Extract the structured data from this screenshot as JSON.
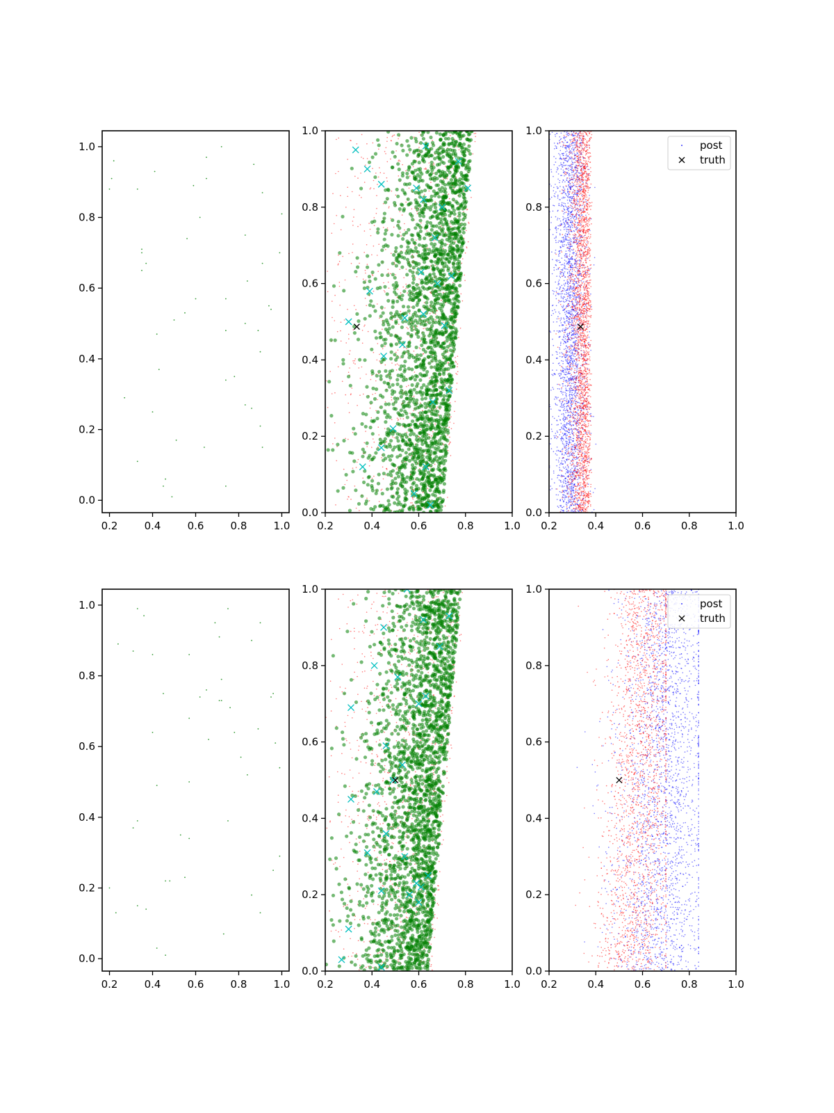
{
  "figure": {
    "title": "",
    "layout": "2x3 grid of scatter plots"
  },
  "colors": {
    "green": "#008000",
    "cyan": "#00bfbf",
    "red": "#ff0000",
    "blue": "#0000ff",
    "black": "#000000"
  },
  "chart_data": [
    {
      "type": "scatter",
      "panel": "top-left",
      "xlim": [
        0.166,
        1.034
      ],
      "ylim": [
        -0.035,
        1.045
      ],
      "xticks": [
        "0.2",
        "0.4",
        "0.6",
        "0.8",
        "1.0"
      ],
      "yticks": [
        "0.0",
        "0.2",
        "0.4",
        "0.6",
        "0.8",
        "1.0"
      ],
      "series": [
        {
          "style": "green small dots",
          "points": [
            [
              0.22,
              0.96
            ],
            [
              0.21,
              0.91
            ],
            [
              0.2,
              0.88
            ],
            [
              0.33,
              0.88
            ],
            [
              0.41,
              0.93
            ],
            [
              0.59,
              0.89
            ],
            [
              0.65,
              0.97
            ],
            [
              0.65,
              0.91
            ],
            [
              0.72,
              1.0
            ],
            [
              0.87,
              0.95
            ],
            [
              0.91,
              0.87
            ],
            [
              1.0,
              0.81
            ],
            [
              0.62,
              0.8
            ],
            [
              0.83,
              0.75
            ],
            [
              0.56,
              0.74
            ],
            [
              0.35,
              0.71
            ],
            [
              0.35,
              0.7
            ],
            [
              0.37,
              0.67
            ],
            [
              0.35,
              0.65
            ],
            [
              0.91,
              0.67
            ],
            [
              0.99,
              0.7
            ],
            [
              0.84,
              0.62
            ],
            [
              0.6,
              0.57
            ],
            [
              0.74,
              0.57
            ],
            [
              0.55,
              0.53
            ],
            [
              0.5,
              0.51
            ],
            [
              0.94,
              0.55
            ],
            [
              0.95,
              0.54
            ],
            [
              0.83,
              0.5
            ],
            [
              0.74,
              0.48
            ],
            [
              0.89,
              0.48
            ],
            [
              0.42,
              0.47
            ],
            [
              0.9,
              0.42
            ],
            [
              0.43,
              0.37
            ],
            [
              0.78,
              0.35
            ],
            [
              0.74,
              0.34
            ],
            [
              0.27,
              0.29
            ],
            [
              0.83,
              0.27
            ],
            [
              0.86,
              0.26
            ],
            [
              0.4,
              0.25
            ],
            [
              0.9,
              0.21
            ],
            [
              0.51,
              0.17
            ],
            [
              0.64,
              0.15
            ],
            [
              0.91,
              0.15
            ],
            [
              0.33,
              0.11
            ],
            [
              0.46,
              0.06
            ],
            [
              0.45,
              0.04
            ],
            [
              0.74,
              0.04
            ],
            [
              0.49,
              0.01
            ]
          ]
        }
      ]
    },
    {
      "type": "scatter",
      "panel": "top-middle",
      "xlim": [
        0.2,
        1.0
      ],
      "ylim": [
        0.0,
        1.0
      ],
      "xticks": [
        "0.2",
        "0.4",
        "0.6",
        "0.8",
        "1.0"
      ],
      "yticks": [
        "0.0",
        "0.2",
        "0.4",
        "0.6",
        "0.8",
        "1.0"
      ],
      "series": [
        {
          "style": "red tiny dots",
          "distribution": "x from 0.2 to right edge rising 0.70→0.84 with y; density heavier toward 0.5-0.8",
          "count": 900
        },
        {
          "style": "green circles",
          "distribution": "band x 0.2–0.83, densest 0.55–0.75",
          "count": 2400
        },
        {
          "style": "cyan x markers",
          "points": [
            [
              0.33,
              0.95
            ],
            [
              0.38,
              0.9
            ],
            [
              0.44,
              0.86
            ],
            [
              0.59,
              0.85
            ],
            [
              0.62,
              0.82
            ],
            [
              0.7,
              0.8
            ],
            [
              0.81,
              0.85
            ],
            [
              0.77,
              0.92
            ],
            [
              0.63,
              0.96
            ],
            [
              0.67,
              0.72
            ],
            [
              0.61,
              0.63
            ],
            [
              0.68,
              0.6
            ],
            [
              0.74,
              0.62
            ],
            [
              0.39,
              0.58
            ],
            [
              0.3,
              0.5
            ],
            [
              0.54,
              0.51
            ],
            [
              0.62,
              0.52
            ],
            [
              0.71,
              0.49
            ],
            [
              0.45,
              0.41
            ],
            [
              0.53,
              0.44
            ],
            [
              0.73,
              0.32
            ],
            [
              0.66,
              0.29
            ],
            [
              0.49,
              0.22
            ],
            [
              0.44,
              0.17
            ],
            [
              0.36,
              0.12
            ],
            [
              0.63,
              0.12
            ],
            [
              0.58,
              0.05
            ],
            [
              0.65,
              0.02
            ]
          ]
        },
        {
          "style": "truth black x",
          "points": [
            [
              0.335,
              0.487
            ]
          ]
        }
      ]
    },
    {
      "type": "scatter",
      "panel": "top-right",
      "xlim": [
        0.2,
        1.0
      ],
      "ylim": [
        0.0,
        1.0
      ],
      "xticks": [
        "0.2",
        "0.4",
        "0.6",
        "0.8",
        "1.0"
      ],
      "yticks": [
        "0.0",
        "0.2",
        "0.4",
        "0.6",
        "0.8",
        "1.0"
      ],
      "legend": {
        "position": "upper right",
        "entries": [
          "post",
          "truth"
        ]
      },
      "series": [
        {
          "name": "post",
          "style": "blue tiny dots",
          "distribution": "narrow band x 0.2–0.40",
          "count": 2600
        },
        {
          "style": "red tiny dots",
          "distribution": "narrow band x 0.24–0.41, densest right side",
          "count": 2600
        },
        {
          "name": "truth",
          "style": "black x",
          "points": [
            [
              0.335,
              0.487
            ]
          ]
        }
      ]
    },
    {
      "type": "scatter",
      "panel": "bottom-left",
      "xlim": [
        0.166,
        1.034
      ],
      "ylim": [
        -0.035,
        1.045
      ],
      "xticks": [
        "0.2",
        "0.4",
        "0.6",
        "0.8",
        "1.0"
      ],
      "yticks": [
        "0.0",
        "0.2",
        "0.4",
        "0.6",
        "0.8",
        "1.0"
      ],
      "series": [
        {
          "style": "green small dots",
          "points": [
            [
              0.33,
              0.99
            ],
            [
              0.36,
              0.97
            ],
            [
              0.75,
              0.99
            ],
            [
              0.69,
              0.95
            ],
            [
              0.9,
              0.95
            ],
            [
              0.71,
              0.91
            ],
            [
              0.24,
              0.89
            ],
            [
              0.31,
              0.87
            ],
            [
              0.4,
              0.86
            ],
            [
              0.57,
              0.86
            ],
            [
              0.86,
              0.9
            ],
            [
              0.72,
              0.79
            ],
            [
              0.45,
              0.75
            ],
            [
              0.62,
              0.74
            ],
            [
              0.65,
              0.76
            ],
            [
              0.71,
              0.73
            ],
            [
              0.72,
              0.73
            ],
            [
              0.96,
              0.75
            ],
            [
              0.95,
              0.74
            ],
            [
              0.76,
              0.71
            ],
            [
              0.57,
              0.68
            ],
            [
              0.4,
              0.64
            ],
            [
              0.78,
              0.64
            ],
            [
              0.89,
              0.65
            ],
            [
              0.66,
              0.62
            ],
            [
              0.97,
              0.61
            ],
            [
              0.81,
              0.57
            ],
            [
              0.99,
              0.54
            ],
            [
              0.84,
              0.52
            ],
            [
              0.57,
              0.5
            ],
            [
              0.42,
              0.49
            ],
            [
              0.75,
              0.39
            ],
            [
              0.33,
              0.39
            ],
            [
              0.31,
              0.37
            ],
            [
              0.53,
              0.35
            ],
            [
              0.57,
              0.34
            ],
            [
              0.46,
              0.22
            ],
            [
              0.48,
              0.22
            ],
            [
              0.55,
              0.23
            ],
            [
              0.96,
              0.25
            ],
            [
              0.99,
              0.29
            ],
            [
              0.2,
              0.2
            ],
            [
              0.86,
              0.18
            ],
            [
              0.33,
              0.15
            ],
            [
              0.37,
              0.14
            ],
            [
              0.23,
              0.13
            ],
            [
              0.9,
              0.13
            ],
            [
              0.73,
              0.07
            ],
            [
              0.42,
              0.03
            ],
            [
              0.46,
              0.01
            ]
          ]
        }
      ]
    },
    {
      "type": "scatter",
      "panel": "bottom-middle",
      "xlim": [
        0.2,
        1.0
      ],
      "ylim": [
        0.0,
        1.0
      ],
      "xticks": [
        "0.2",
        "0.4",
        "0.6",
        "0.8",
        "1.0"
      ],
      "yticks": [
        "0.0",
        "0.2",
        "0.4",
        "0.6",
        "0.8",
        "1.0"
      ],
      "series": [
        {
          "style": "red tiny dots",
          "distribution": "x from 0.2 to right edge rising 0.64→0.78 with y",
          "count": 900
        },
        {
          "style": "green circles",
          "distribution": "band x 0.2–0.8, right edge slanted, densest 0.5–0.7",
          "count": 2400
        },
        {
          "style": "cyan x markers",
          "points": [
            [
              0.45,
              0.9
            ],
            [
              0.55,
              1.0
            ],
            [
              0.62,
              0.92
            ],
            [
              0.73,
              0.93
            ],
            [
              0.69,
              0.85
            ],
            [
              0.41,
              0.8
            ],
            [
              0.51,
              0.77
            ],
            [
              0.63,
              0.72
            ],
            [
              0.6,
              0.7
            ],
            [
              0.31,
              0.69
            ],
            [
              0.46,
              0.59
            ],
            [
              0.49,
              0.5
            ],
            [
              0.53,
              0.54
            ],
            [
              0.42,
              0.47
            ],
            [
              0.31,
              0.45
            ],
            [
              0.46,
              0.36
            ],
            [
              0.38,
              0.31
            ],
            [
              0.54,
              0.3
            ],
            [
              0.44,
              0.21
            ],
            [
              0.56,
              0.2
            ],
            [
              0.59,
              0.23
            ],
            [
              0.61,
              0.22
            ],
            [
              0.64,
              0.25
            ],
            [
              0.6,
              0.18
            ],
            [
              0.27,
              0.03
            ],
            [
              0.3,
              0.11
            ],
            [
              0.44,
              0.01
            ]
          ]
        },
        {
          "style": "truth black x",
          "points": [
            [
              0.5,
              0.5
            ]
          ]
        }
      ]
    },
    {
      "type": "scatter",
      "panel": "bottom-right",
      "xlim": [
        0.2,
        1.0
      ],
      "ylim": [
        0.0,
        1.0
      ],
      "xticks": [
        "0.2",
        "0.4",
        "0.6",
        "0.8",
        "1.0"
      ],
      "yticks": [
        "0.0",
        "0.2",
        "0.4",
        "0.6",
        "0.8",
        "1.0"
      ],
      "legend": {
        "position": "upper right",
        "entries": [
          "post",
          "truth"
        ]
      },
      "series": [
        {
          "name": "post",
          "style": "blue tiny dots",
          "distribution": "band x 0.2–0.84, denser 0.5–0.8",
          "count": 2400
        },
        {
          "style": "red tiny dots",
          "distribution": "band x 0.22–0.68, densest 0.5–0.65",
          "count": 2000
        },
        {
          "name": "truth",
          "style": "black x",
          "points": [
            [
              0.5,
              0.5
            ]
          ]
        }
      ]
    }
  ]
}
